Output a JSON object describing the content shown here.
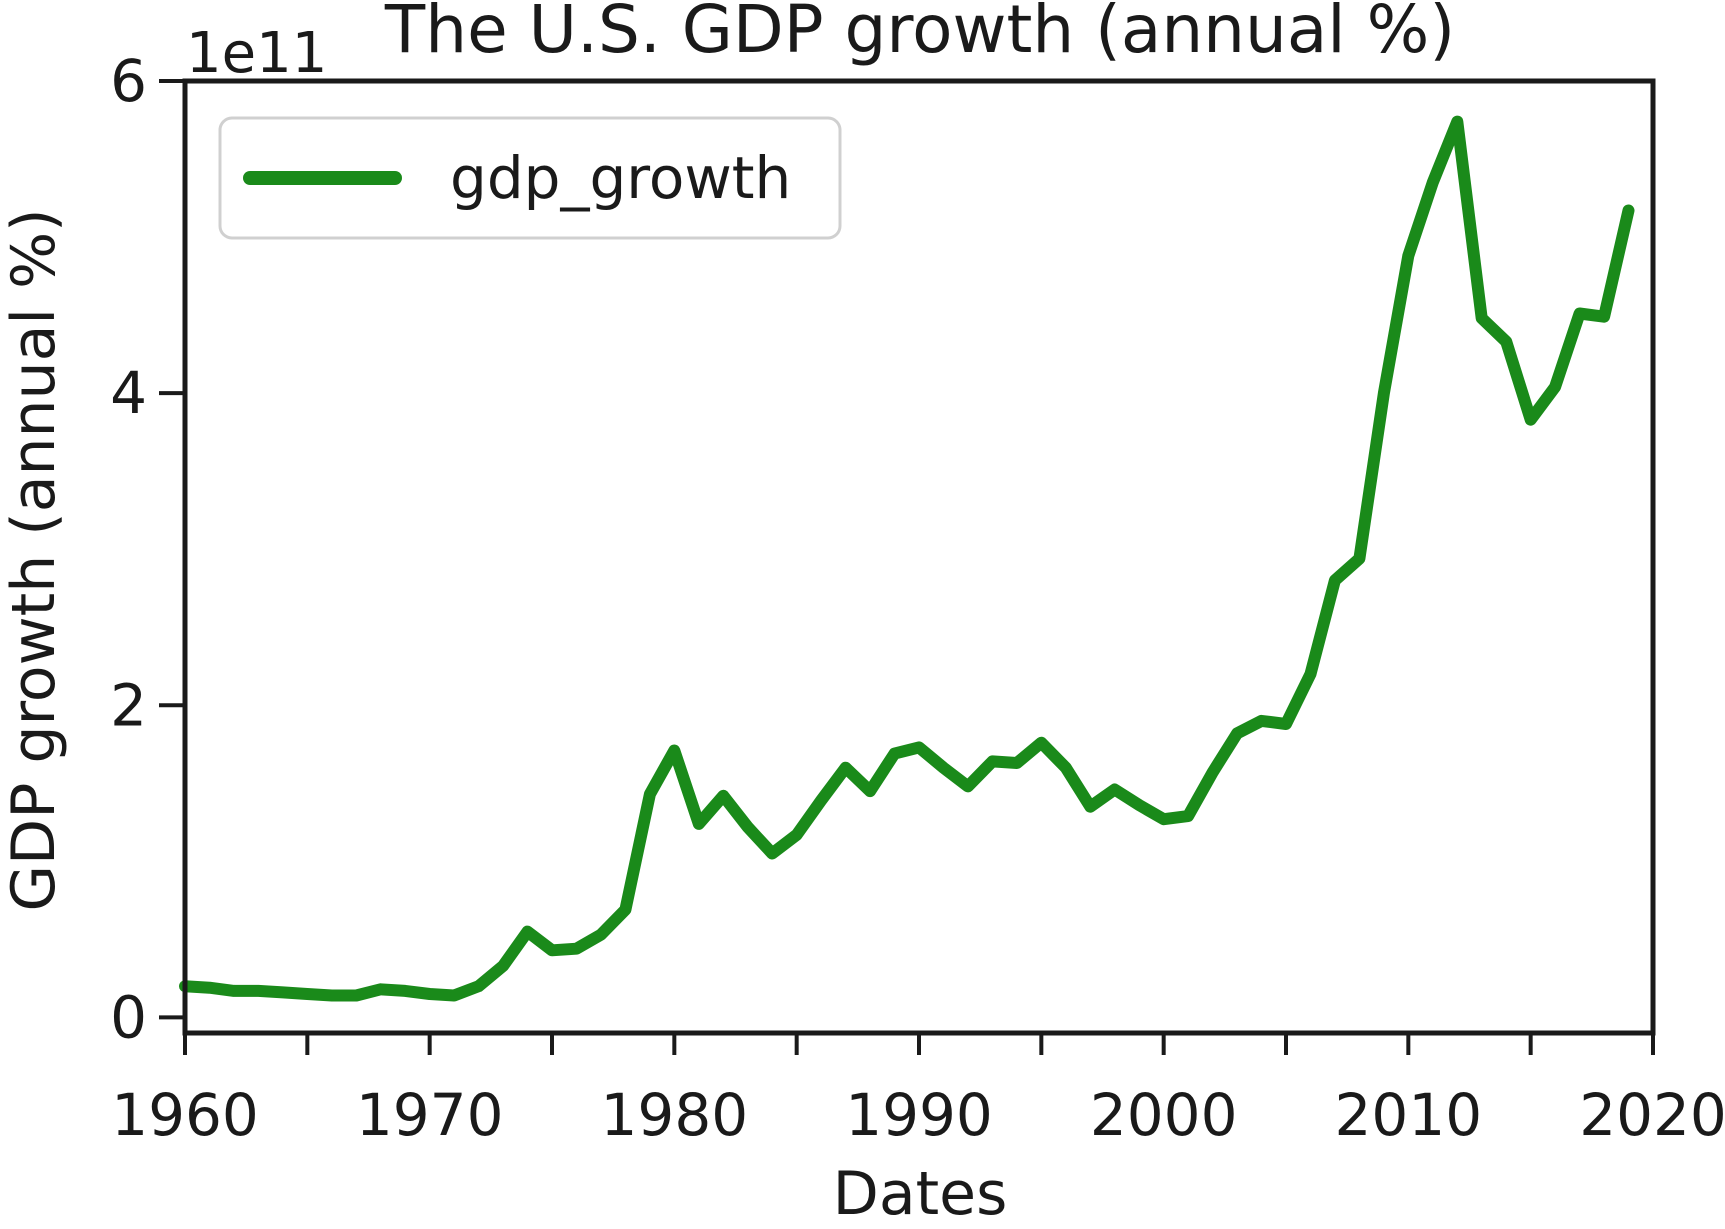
{
  "chart_data": {
    "type": "line",
    "title": "The U.S. GDP growth (annual %)",
    "xlabel": "Dates",
    "ylabel": "GDP growth (annual %)",
    "y_offset_label": "1e11",
    "xlim": [
      1960,
      2020
    ],
    "ylim": [
      -0.1,
      6.0
    ],
    "y_scale_note": "values in units of 1e11",
    "x_ticks": [
      1960,
      1965,
      1970,
      1975,
      1980,
      1985,
      1990,
      1995,
      2000,
      2005,
      2010,
      2015,
      2020
    ],
    "x_tick_labels": [
      "1960",
      "1970",
      "1980",
      "1990",
      "2000",
      "2010",
      "2020"
    ],
    "x_tick_label_values": [
      1960,
      1970,
      1980,
      1990,
      2000,
      2010,
      2020
    ],
    "y_ticks": [
      0,
      2,
      4,
      6
    ],
    "y_tick_labels": [
      "0",
      "2",
      "4",
      "6"
    ],
    "grid": false,
    "legend": {
      "position": "top-left"
    },
    "series": [
      {
        "name": "gdp_growth",
        "color": "#1a8a1a",
        "x": [
          1960,
          1961,
          1962,
          1963,
          1964,
          1965,
          1966,
          1967,
          1968,
          1969,
          1970,
          1971,
          1972,
          1973,
          1974,
          1975,
          1976,
          1977,
          1978,
          1979,
          1980,
          1981,
          1982,
          1983,
          1984,
          1985,
          1986,
          1987,
          1988,
          1989,
          1990,
          1991,
          1992,
          1993,
          1994,
          1995,
          1996,
          1997,
          1998,
          1999,
          2000,
          2001,
          2002,
          2003,
          2004,
          2005,
          2006,
          2007,
          2008,
          2009,
          2010,
          2011,
          2012,
          2013,
          2014,
          2015,
          2016,
          2017,
          2018,
          2019
        ],
        "values": [
          0.2,
          0.19,
          0.17,
          0.17,
          0.16,
          0.15,
          0.14,
          0.14,
          0.18,
          0.17,
          0.15,
          0.14,
          0.2,
          0.33,
          0.55,
          0.43,
          0.44,
          0.53,
          0.69,
          1.43,
          1.71,
          1.24,
          1.42,
          1.22,
          1.05,
          1.17,
          1.39,
          1.6,
          1.45,
          1.69,
          1.73,
          1.6,
          1.48,
          1.64,
          1.63,
          1.76,
          1.6,
          1.35,
          1.46,
          1.36,
          1.27,
          1.29,
          1.57,
          1.82,
          1.9,
          1.88,
          2.2,
          2.8,
          2.94,
          4.0,
          4.88,
          5.35,
          5.74,
          4.48,
          4.33,
          3.83,
          4.04,
          4.51,
          4.49,
          5.17
        ]
      }
    ]
  }
}
